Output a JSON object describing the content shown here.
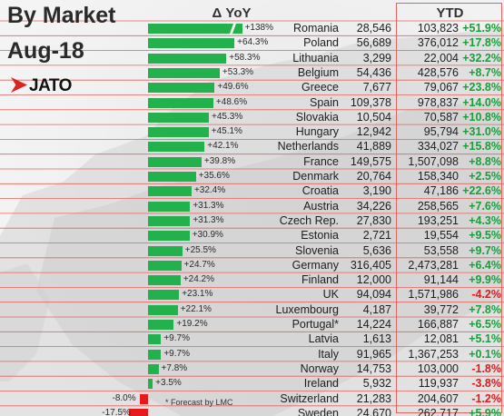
{
  "title_line1": "By Market",
  "title_line2": "Aug-18",
  "logo_text": "JATO",
  "yoy_header": "Δ YoY",
  "ytd_header": "YTD",
  "footnote": "* Forecast by LMC",
  "colors": {
    "positive_bar": "#22b14c",
    "negative_bar": "#e8191c",
    "positive_text": "#1a9e3a",
    "negative_text": "#e0191c",
    "grid_line": "#e0655e",
    "map_land": "#d2d2d2"
  },
  "chart_data": {
    "type": "bar",
    "orientation": "horizontal",
    "title": "By Market Aug-18",
    "categories": [
      "Romania",
      "Poland",
      "Lithuania",
      "Belgium",
      "Greece",
      "Spain",
      "Slovakia",
      "Hungary",
      "Netherlands",
      "France",
      "Denmark",
      "Croatia",
      "Austria",
      "Czech Rep.",
      "Estonia",
      "Slovenia",
      "Germany",
      "Finland",
      "UK",
      "Luxembourg",
      "Portugal*",
      "Latvia",
      "Italy",
      "Norway",
      "Ireland",
      "Switzerland",
      "Sweden"
    ],
    "series": [
      {
        "name": "Δ YoY",
        "values": [
          138.0,
          64.3,
          58.3,
          53.3,
          49.6,
          48.6,
          45.3,
          45.1,
          42.1,
          39.8,
          35.6,
          32.4,
          31.3,
          31.3,
          30.9,
          25.5,
          24.7,
          24.2,
          23.1,
          22.1,
          19.2,
          9.7,
          9.7,
          7.8,
          3.5,
          -8.0,
          -17.5
        ],
        "labels": [
          "+138%",
          "+64.3%",
          "+58.3%",
          "+53.3%",
          "+49.6%",
          "+48.6%",
          "+45.3%",
          "+45.1%",
          "+42.1%",
          "+39.8%",
          "+35.6%",
          "+32.4%",
          "+31.3%",
          "+31.3%",
          "+30.9%",
          "+25.5%",
          "+24.7%",
          "+24.2%",
          "+23.1%",
          "+22.1%",
          "+19.2%",
          "+9.7%",
          "+9.7%",
          "+7.8%",
          "+3.5%",
          "-8.0%",
          "-17.5%"
        ]
      }
    ],
    "volumes": [
      "28,546",
      "56,689",
      "3,299",
      "54,436",
      "7,677",
      "109,378",
      "10,504",
      "12,942",
      "41,889",
      "149,575",
      "20,764",
      "3,190",
      "34,226",
      "27,830",
      "2,721",
      "5,636",
      "316,405",
      "12,000",
      "94,094",
      "4,187",
      "14,224",
      "1,613",
      "91,965",
      "14,753",
      "5,932",
      "21,283",
      "24,670"
    ],
    "ytd_volumes": [
      "103,823",
      "376,012",
      "22,004",
      "428,576",
      "79,067",
      "978,837",
      "70,587",
      "95,794",
      "334,027",
      "1,507,098",
      "158,340",
      "47,186",
      "258,565",
      "193,251",
      "19,554",
      "53,558",
      "2,473,281",
      "91,144",
      "1,571,986",
      "39,772",
      "166,887",
      "12,081",
      "1,367,253",
      "103,000",
      "119,937",
      "204,607",
      "262,717"
    ],
    "ytd_changes": [
      "+51.9%",
      "+17.8%",
      "+32.2%",
      "+8.7%",
      "+23.8%",
      "+14.0%",
      "+10.8%",
      "+31.0%",
      "+15.8%",
      "+8.8%",
      "+2.5%",
      "+22.6%",
      "+7.6%",
      "+4.3%",
      "+9.5%",
      "+9.7%",
      "+6.4%",
      "+9.9%",
      "-4.2%",
      "+7.8%",
      "+6.5%",
      "+5.1%",
      "+0.1%",
      "-1.8%",
      "-3.8%",
      "-1.2%",
      "+5.9%"
    ]
  }
}
